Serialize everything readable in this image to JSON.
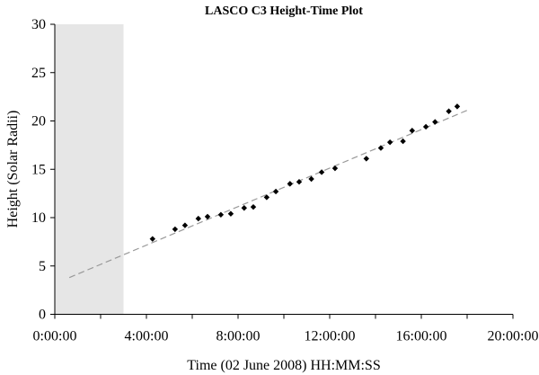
{
  "chart_data": {
    "type": "scatter",
    "title": "LASCO C3 Height-Time Plot",
    "xlabel": "Time (02 June 2008) HH:MM:SS",
    "ylabel": "Height (Solar Radii)",
    "xlim": [
      "0:00:00",
      "20:00:00"
    ],
    "ylim": [
      0,
      30
    ],
    "xticks": [
      "0:00:00",
      "4:00:00",
      "8:00:00",
      "12:00:00",
      "16:00:00",
      "20:00:00"
    ],
    "yticks": [
      0,
      5,
      10,
      15,
      20,
      25,
      30
    ],
    "grid": false,
    "shaded_region": {
      "x": [
        "0:00:00",
        "3:00:00"
      ],
      "color": "#e6e6e6"
    },
    "points": {
      "color": "#000000",
      "x": [
        "4:16:00",
        "5:15:00",
        "5:41:00",
        "6:16:00",
        "6:40:00",
        "7:15:00",
        "7:41:00",
        "8:16:00",
        "8:40:00",
        "9:15:00",
        "9:39:00",
        "10:16:00",
        "10:40:00",
        "11:12:00",
        "11:39:00",
        "12:14:00",
        "13:36:00",
        "14:14:00",
        "14:38:00",
        "15:12:00",
        "15:36:00",
        "16:12:00",
        "16:36:00",
        "17:12:00",
        "17:34:00"
      ],
      "y": [
        7.8,
        8.8,
        9.2,
        9.9,
        10.1,
        10.3,
        10.4,
        11.0,
        11.1,
        12.1,
        12.7,
        13.5,
        13.7,
        14.0,
        14.7,
        15.1,
        16.1,
        17.2,
        17.8,
        17.9,
        19.0,
        19.4,
        19.9,
        21.0,
        21.5
      ]
    },
    "fit_line": {
      "style": "dashed",
      "color": "#999999",
      "x": [
        "0:38:00",
        "18:06:00"
      ],
      "y": [
        3.8,
        21.2
      ]
    }
  }
}
